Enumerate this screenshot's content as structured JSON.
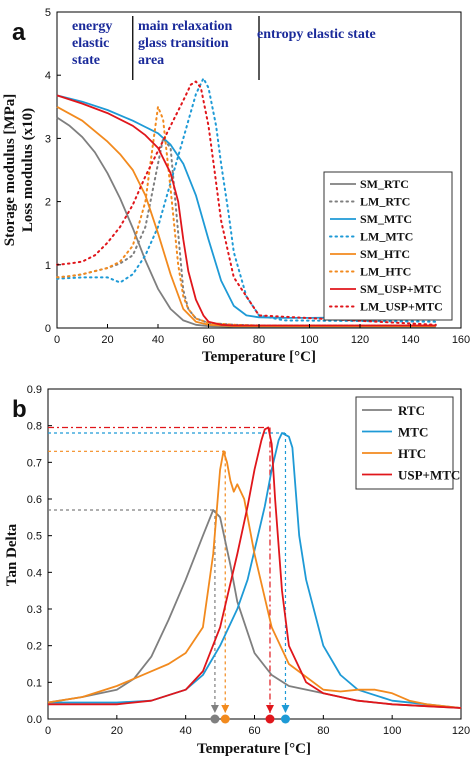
{
  "chart_data": [
    {
      "panel_label": "a",
      "type": "line",
      "xlabel": "Temperature [°C]",
      "ylabel": "Storage modulus [MPa]",
      "ylabel2": "Loss modulus (x10)",
      "xlim": [
        0,
        160
      ],
      "ylim": [
        0,
        5
      ],
      "xticks": [
        "0",
        "20",
        "40",
        "60",
        "80",
        "100",
        "120",
        "140",
        "160"
      ],
      "yticks": [
        "0",
        "1",
        "2",
        "3",
        "4",
        "5"
      ],
      "annotations": [
        {
          "lines": [
            "energy",
            "elastic",
            "state"
          ]
        },
        {
          "lines": [
            "main relaxation",
            "glass transition",
            "area"
          ]
        },
        {
          "lines": [
            "entropy elastic state"
          ]
        }
      ],
      "region_dividers_x": [
        30,
        80
      ],
      "legend_position": "right",
      "series": [
        {
          "name": "SM_RTC",
          "style": "solid",
          "color": "#7f7f7f",
          "x": [
            0,
            5,
            10,
            15,
            20,
            25,
            30,
            35,
            40,
            45,
            50,
            55,
            60,
            70,
            80,
            100,
            120,
            150
          ],
          "y": [
            3.33,
            3.2,
            3.02,
            2.78,
            2.45,
            2.05,
            1.58,
            1.07,
            0.62,
            0.3,
            0.12,
            0.05,
            0.03,
            0.02,
            0.02,
            0.02,
            0.02,
            0.02
          ]
        },
        {
          "name": "LM_RTC",
          "style": "dotted",
          "color": "#7f7f7f",
          "x": [
            0,
            5,
            10,
            15,
            20,
            25,
            30,
            35,
            40,
            42,
            45,
            48,
            50,
            52,
            55,
            60,
            70,
            80,
            100,
            150
          ],
          "y": [
            0.8,
            0.82,
            0.85,
            0.9,
            0.95,
            1.02,
            1.15,
            1.6,
            2.6,
            3.0,
            2.85,
            1.5,
            0.6,
            0.3,
            0.15,
            0.08,
            0.05,
            0.04,
            0.04,
            0.04
          ]
        },
        {
          "name": "SM_MTC",
          "style": "solid",
          "color": "#1e9ad6",
          "x": [
            0,
            10,
            20,
            30,
            35,
            40,
            45,
            50,
            55,
            60,
            65,
            70,
            75,
            80,
            90,
            100,
            120,
            150
          ],
          "y": [
            3.68,
            3.58,
            3.45,
            3.28,
            3.18,
            3.08,
            2.9,
            2.6,
            2.1,
            1.4,
            0.75,
            0.35,
            0.2,
            0.17,
            0.16,
            0.16,
            0.17,
            0.19
          ]
        },
        {
          "name": "LM_MTC",
          "style": "dotted",
          "color": "#1e9ad6",
          "x": [
            0,
            10,
            20,
            25,
            30,
            35,
            40,
            45,
            50,
            55,
            58,
            60,
            63,
            65,
            68,
            70,
            75,
            80,
            90,
            120,
            150
          ],
          "y": [
            0.78,
            0.8,
            0.8,
            0.72,
            0.85,
            1.15,
            1.6,
            2.3,
            3.0,
            3.7,
            3.95,
            3.8,
            3.2,
            2.6,
            1.8,
            1.2,
            0.5,
            0.2,
            0.12,
            0.11,
            0.1
          ]
        },
        {
          "name": "SM_HTC",
          "style": "solid",
          "color": "#f28a1e",
          "x": [
            0,
            10,
            20,
            25,
            30,
            35,
            40,
            45,
            50,
            55,
            60,
            70,
            80,
            100,
            150
          ],
          "y": [
            3.5,
            3.28,
            2.95,
            2.75,
            2.5,
            2.1,
            1.5,
            0.85,
            0.3,
            0.1,
            0.05,
            0.03,
            0.03,
            0.03,
            0.03
          ]
        },
        {
          "name": "LM_HTC",
          "style": "dotted",
          "color": "#f28a1e",
          "x": [
            0,
            5,
            10,
            15,
            20,
            25,
            30,
            35,
            38,
            40,
            42,
            45,
            48,
            50,
            52,
            55,
            60,
            70,
            80,
            150
          ],
          "y": [
            0.8,
            0.82,
            0.85,
            0.9,
            0.95,
            1.05,
            1.3,
            2.0,
            2.9,
            3.5,
            3.3,
            2.2,
            1.0,
            0.5,
            0.3,
            0.15,
            0.08,
            0.05,
            0.04,
            0.04
          ]
        },
        {
          "name": "SM_USP+MTC",
          "style": "solid",
          "color": "#e0161b",
          "x": [
            0,
            10,
            20,
            30,
            35,
            40,
            45,
            48,
            50,
            52,
            55,
            58,
            60,
            65,
            70,
            80,
            100,
            120,
            150
          ],
          "y": [
            3.68,
            3.55,
            3.4,
            3.2,
            3.05,
            2.85,
            2.45,
            2.0,
            1.4,
            0.9,
            0.45,
            0.2,
            0.1,
            0.05,
            0.04,
            0.04,
            0.04,
            0.04,
            0.04
          ]
        },
        {
          "name": "LM_USP+MTC",
          "style": "dotted",
          "color": "#e0161b",
          "x": [
            0,
            5,
            10,
            15,
            20,
            25,
            30,
            35,
            40,
            45,
            50,
            53,
            55,
            57,
            60,
            62,
            65,
            70,
            80,
            150
          ],
          "y": [
            1.0,
            1.02,
            1.05,
            1.15,
            1.35,
            1.6,
            1.95,
            2.4,
            2.8,
            3.2,
            3.6,
            3.85,
            3.9,
            3.8,
            3.2,
            2.6,
            1.7,
            0.8,
            0.2,
            0.05
          ]
        }
      ]
    },
    {
      "panel_label": "b",
      "type": "line",
      "xlabel": "Temperature [°C]",
      "ylabel": "Tan Delta",
      "xlim": [
        0,
        120
      ],
      "ylim": [
        0,
        0.9
      ],
      "xticks": [
        "0",
        "20",
        "40",
        "60",
        "80",
        "100",
        "120"
      ],
      "yticks": [
        "0.0",
        "0.1",
        "0.2",
        "0.3",
        "0.4",
        "0.5",
        "0.6",
        "0.7",
        "0.8",
        "0.9"
      ],
      "legend_position": "top-right",
      "peaks": [
        {
          "series": "RTC",
          "x": 48.5,
          "y": 0.57,
          "color": "#7f7f7f",
          "marker_color": "#7f7f7f"
        },
        {
          "series": "MTC",
          "x": 69,
          "y": 0.78,
          "color": "#1e9ad6",
          "marker_color": "#1e9ad6"
        },
        {
          "series": "HTC",
          "x": 51.5,
          "y": 0.73,
          "color": "#f28a1e",
          "marker_color": "#f28a1e"
        },
        {
          "series": "USP+MTC",
          "x": 64.5,
          "y": 0.795,
          "color": "#e0161b",
          "marker_color": "#e0161b"
        }
      ],
      "series": [
        {
          "name": "RTC",
          "style": "solid",
          "color": "#7f7f7f",
          "x": [
            0,
            10,
            20,
            25,
            30,
            35,
            40,
            45,
            48,
            50,
            53,
            55,
            60,
            65,
            70,
            80,
            90,
            100,
            110,
            120
          ],
          "y": [
            0.045,
            0.06,
            0.08,
            0.11,
            0.17,
            0.27,
            0.38,
            0.5,
            0.57,
            0.55,
            0.42,
            0.32,
            0.18,
            0.12,
            0.09,
            0.07,
            0.05,
            0.04,
            0.035,
            0.03
          ]
        },
        {
          "name": "MTC",
          "style": "solid",
          "color": "#1e9ad6",
          "x": [
            0,
            10,
            20,
            30,
            40,
            45,
            50,
            55,
            58,
            60,
            63,
            65,
            67,
            68,
            70,
            71,
            72,
            73,
            75,
            80,
            85,
            90,
            100,
            110,
            120
          ],
          "y": [
            0.045,
            0.045,
            0.045,
            0.05,
            0.08,
            0.12,
            0.2,
            0.3,
            0.38,
            0.46,
            0.58,
            0.68,
            0.76,
            0.78,
            0.77,
            0.74,
            0.62,
            0.5,
            0.38,
            0.2,
            0.12,
            0.08,
            0.05,
            0.04,
            0.03
          ]
        },
        {
          "name": "HTC",
          "style": "solid",
          "color": "#f28a1e",
          "x": [
            0,
            10,
            20,
            25,
            30,
            35,
            40,
            45,
            48,
            50,
            51,
            52,
            53,
            54,
            55,
            57,
            60,
            65,
            70,
            80,
            85,
            90,
            95,
            100,
            105,
            110,
            120
          ],
          "y": [
            0.045,
            0.06,
            0.09,
            0.11,
            0.13,
            0.15,
            0.18,
            0.25,
            0.45,
            0.68,
            0.73,
            0.7,
            0.65,
            0.62,
            0.64,
            0.6,
            0.45,
            0.25,
            0.15,
            0.08,
            0.075,
            0.08,
            0.08,
            0.07,
            0.05,
            0.04,
            0.03
          ]
        },
        {
          "name": "USP+MTC",
          "style": "solid",
          "color": "#e0161b",
          "x": [
            0,
            10,
            20,
            30,
            40,
            45,
            50,
            55,
            58,
            60,
            62,
            63,
            64,
            65,
            66,
            68,
            70,
            75,
            80,
            90,
            100,
            110,
            120
          ],
          "y": [
            0.04,
            0.04,
            0.04,
            0.05,
            0.08,
            0.13,
            0.25,
            0.45,
            0.58,
            0.68,
            0.76,
            0.79,
            0.795,
            0.75,
            0.6,
            0.35,
            0.2,
            0.1,
            0.07,
            0.05,
            0.04,
            0.035,
            0.03
          ]
        }
      ]
    }
  ]
}
